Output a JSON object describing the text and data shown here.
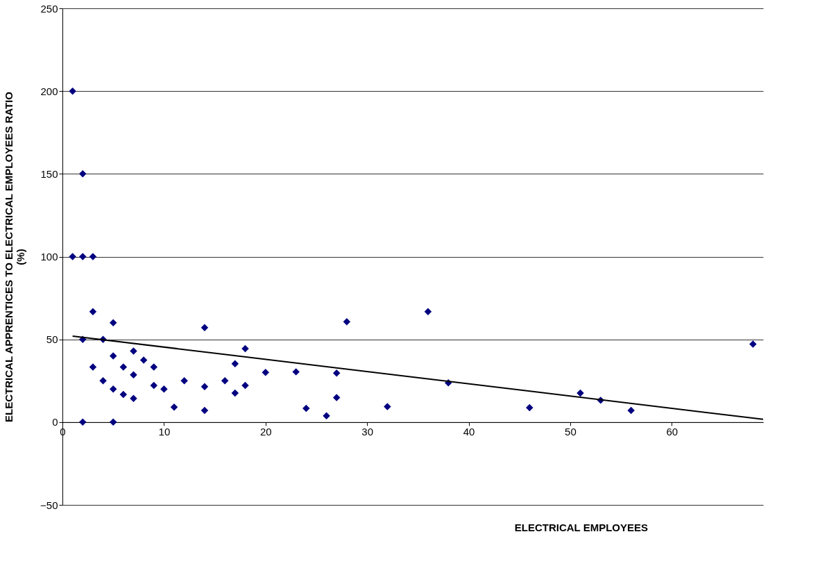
{
  "chart_data": {
    "type": "scatter",
    "xlabel": "ELECTRICAL EMPLOYEES",
    "ylabel": "ELECTRICAL APPRENTICES TO ELECTRICAL EMPLOYEES RATIO\n(%)",
    "xlim": [
      0,
      69
    ],
    "ylim": [
      -50,
      250
    ],
    "xticks": [
      0,
      10,
      20,
      30,
      40,
      50,
      60
    ],
    "yticks": [
      -50,
      0,
      50,
      100,
      150,
      200,
      250
    ],
    "grid": "y",
    "series": [
      {
        "color": "#000080",
        "marker": "diamond",
        "x": [
          1,
          2,
          1,
          2,
          3,
          3,
          2,
          4,
          5,
          5,
          3,
          4,
          5,
          6,
          6,
          7,
          7,
          7,
          8,
          9,
          9,
          10,
          11,
          12,
          14,
          14,
          14,
          16,
          17,
          17,
          18,
          18,
          20,
          23,
          24,
          26,
          27,
          27,
          28,
          32,
          36,
          38,
          46,
          51,
          53,
          56,
          68,
          2,
          5
        ],
        "values": [
          200,
          150,
          100,
          100,
          100,
          66.7,
          50,
          50,
          60,
          40,
          33.3,
          25,
          20,
          33.3,
          16.7,
          42.9,
          28.6,
          14.3,
          37.5,
          33.3,
          22.2,
          20,
          9.1,
          25,
          57.1,
          21.4,
          7.1,
          25,
          35.3,
          17.6,
          44.4,
          22.2,
          30,
          30.4,
          8.3,
          3.8,
          29.6,
          14.8,
          60.7,
          9.4,
          66.7,
          23.7,
          8.7,
          17.6,
          13.2,
          7.1,
          47.1,
          0,
          0
        ]
      },
      {
        "type": "line",
        "color": "#000000",
        "marker": "none",
        "line_style": "solid",
        "x": [
          1,
          69
        ],
        "values": [
          52,
          1.7
        ]
      }
    ]
  }
}
